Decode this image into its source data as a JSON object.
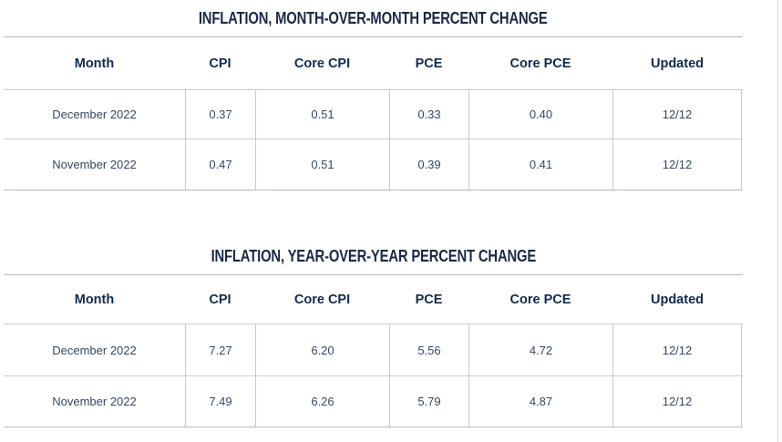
{
  "page": {
    "background": "#ffffff",
    "title_color": "#1b2946",
    "header_color": "#12294e",
    "text_color": "#374760",
    "grid_line_color": "#c8cccc",
    "outer_line_color": "#b4baba",
    "page_edge_color": "#d4d7d7"
  },
  "chart_data": [
    {
      "type": "table",
      "title": "INFLATION, MONTH-OVER-MONTH PERCENT CHANGE",
      "columns": [
        "Month",
        "CPI",
        "Core CPI",
        "PCE",
        "Core PCE",
        "Updated"
      ],
      "rows": [
        [
          "December 2022",
          "0.37",
          "0.51",
          "0.33",
          "0.40",
          "12/12"
        ],
        [
          "November 2022",
          "0.47",
          "0.51",
          "0.39",
          "0.41",
          "12/12"
        ]
      ]
    },
    {
      "type": "table",
      "title": "INFLATION, YEAR-OVER-YEAR PERCENT CHANGE",
      "columns": [
        "Month",
        "CPI",
        "Core CPI",
        "PCE",
        "Core PCE",
        "Updated"
      ],
      "rows": [
        [
          "December 2022",
          "7.27",
          "6.20",
          "5.56",
          "4.72",
          "12/12"
        ],
        [
          "November 2022",
          "7.49",
          "6.26",
          "5.79",
          "4.87",
          "12/12"
        ]
      ]
    }
  ]
}
